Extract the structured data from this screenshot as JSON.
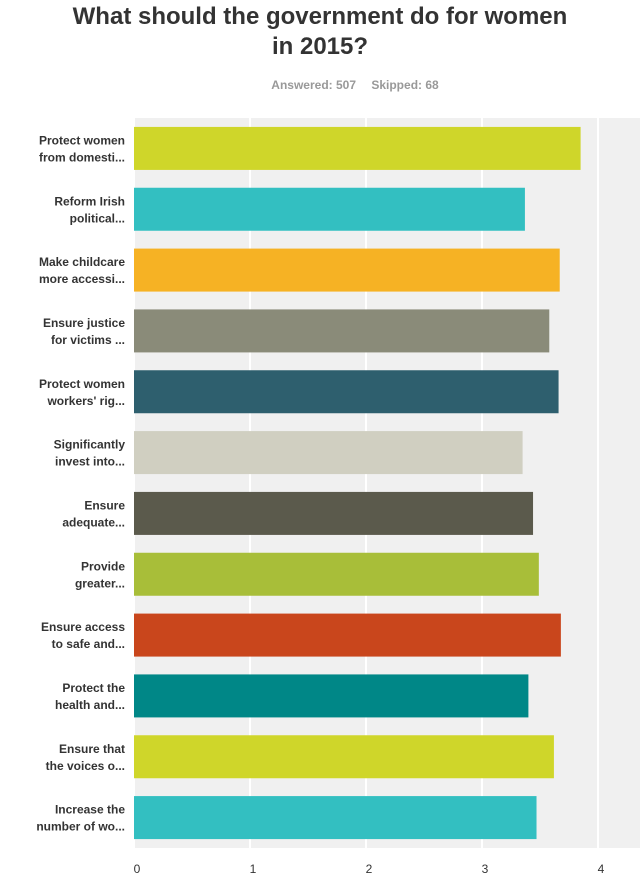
{
  "title": "What should the government do for women in 2015?",
  "stats": {
    "answered": "Answered: 507",
    "skipped": "Skipped: 68"
  },
  "chart_data": {
    "type": "bar",
    "orientation": "horizontal",
    "categories": [
      [
        "Protect women",
        "from domesti..."
      ],
      [
        "Reform Irish",
        "political..."
      ],
      [
        "Make childcare",
        "more accessi..."
      ],
      [
        "Ensure justice",
        "for victims ..."
      ],
      [
        "Protect women",
        "workers' rig..."
      ],
      [
        "Significantly",
        "invest into..."
      ],
      [
        "Ensure",
        "adequate..."
      ],
      [
        "Provide",
        "greater..."
      ],
      [
        "Ensure access",
        "to safe and..."
      ],
      [
        "Protect the",
        "health and..."
      ],
      [
        "Ensure that",
        "the voices o..."
      ],
      [
        "Increase the",
        "number of wo..."
      ]
    ],
    "values": [
      3.85,
      3.37,
      3.67,
      3.58,
      3.66,
      3.35,
      3.44,
      3.49,
      3.68,
      3.4,
      3.62,
      3.47
    ],
    "colors": [
      "#cfd62a",
      "#33bfc1",
      "#f6b224",
      "#8a8b79",
      "#2e5f6e",
      "#d0cfc1",
      "#5b5a4c",
      "#a8be39",
      "#c9461c",
      "#008787",
      "#cfd62a",
      "#33bfc1"
    ],
    "xlim": [
      0,
      4
    ],
    "xticks": [
      0,
      1,
      2,
      3,
      4
    ],
    "grid": true,
    "background": "#f0f0f0"
  }
}
